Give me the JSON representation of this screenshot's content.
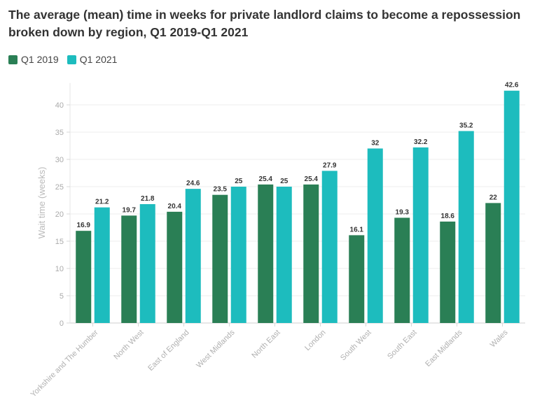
{
  "chart_data": {
    "type": "bar",
    "title": "The average (mean) time in weeks for private landlord claims to become a repossession broken down by region, Q1 2019-Q1 2021",
    "xlabel": "",
    "ylabel": "Wait time (weeks)",
    "ylim": [
      0,
      44
    ],
    "yticks": [
      0,
      5,
      10,
      15,
      20,
      25,
      30,
      35,
      40
    ],
    "grid": true,
    "legend_position": "top-left",
    "categories": [
      "Yorkshire and The Humber",
      "North West",
      "East of England",
      "West Midlands",
      "North East",
      "London",
      "South West",
      "South East",
      "East Midlands",
      "Wales"
    ],
    "series": [
      {
        "name": "Q1 2019",
        "color": "#2a7f55",
        "values": [
          16.9,
          19.7,
          20.4,
          23.5,
          25.4,
          25.4,
          16.1,
          19.3,
          18.6,
          22
        ]
      },
      {
        "name": "Q1 2021",
        "color": "#1dbcbe",
        "values": [
          21.2,
          21.8,
          24.6,
          25,
          25,
          27.9,
          32,
          32.2,
          35.2,
          42.6
        ]
      }
    ]
  }
}
